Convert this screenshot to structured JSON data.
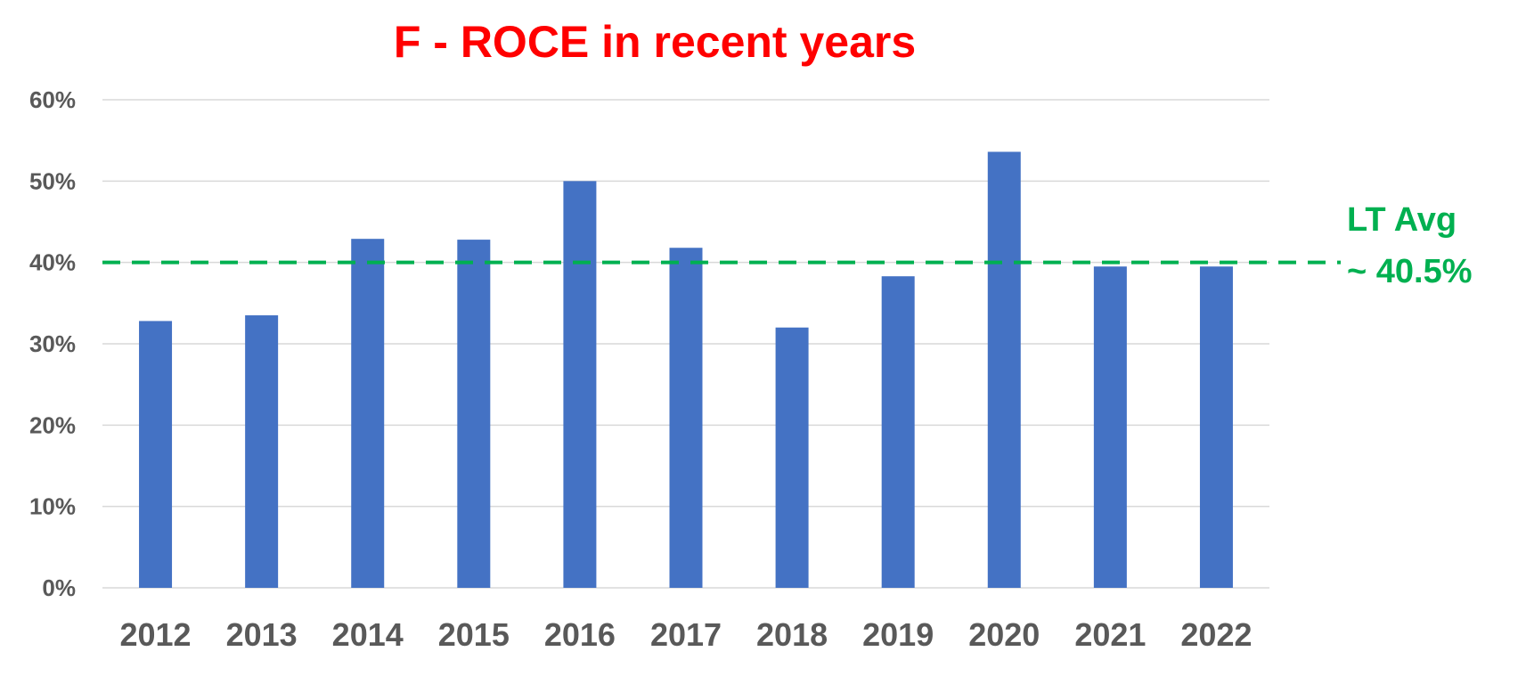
{
  "chart_data": {
    "type": "bar",
    "title": "F - ROCE  in recent years",
    "xlabel": "",
    "ylabel": "",
    "categories": [
      "2012",
      "2013",
      "2014",
      "2015",
      "2016",
      "2017",
      "2018",
      "2019",
      "2020",
      "2021",
      "2022"
    ],
    "values": [
      32.8,
      33.5,
      42.9,
      42.8,
      50.0,
      41.8,
      32.0,
      38.3,
      53.6,
      39.5,
      39.5
    ],
    "value_format": "percent",
    "ylim": [
      0,
      60
    ],
    "yticks": [
      0,
      10,
      20,
      30,
      40,
      50,
      60
    ],
    "ytick_labels": [
      "0%",
      "10%",
      "20%",
      "30%",
      "40%",
      "50%",
      "60%"
    ],
    "grid": true,
    "legend": "none",
    "bar_color": "#4472c4",
    "reference_line": {
      "value": 40,
      "style": "dashed",
      "color": "#00b050",
      "label_lines": [
        "LT Avg",
        "~ 40.5%"
      ]
    },
    "title_color": "#ff0000",
    "tick_color": "#595959",
    "grid_color": "#d9d9d9"
  }
}
